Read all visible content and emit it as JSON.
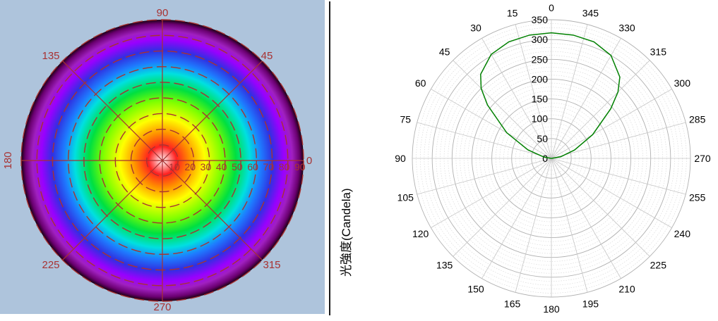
{
  "chart_data": [
    {
      "type": "heatmap",
      "subtype": "polar-color-map",
      "title": "",
      "angle_labels": [
        {
          "text": "90",
          "angle": 90
        },
        {
          "text": "45",
          "angle": 45
        },
        {
          "text": "135",
          "angle": 135
        },
        {
          "text": "180",
          "angle": 180
        },
        {
          "text": "0",
          "angle": 0
        },
        {
          "text": "225",
          "angle": 225
        },
        {
          "text": "315",
          "angle": 315
        },
        {
          "text": "270",
          "angle": 270
        }
      ],
      "radial_tick_labels": [
        "10",
        "20",
        "30",
        "40",
        "50",
        "60",
        "70",
        "80",
        "90"
      ],
      "radial_range": [
        0,
        90
      ],
      "radial_grid": [
        10,
        20,
        30,
        40,
        50,
        60,
        70,
        80,
        90
      ],
      "background_color": "#aec4dc",
      "grid_color": "#a83232",
      "colorscale": [
        "#ffffff",
        "#ff2020",
        "#ff8c00",
        "#ffff00",
        "#7fff00",
        "#00e040",
        "#00e0e0",
        "#1e7bff",
        "#3030e0",
        "#9a00ff",
        "#a020c0",
        "#6a0070",
        "#1a0010"
      ]
    },
    {
      "type": "line",
      "subtype": "polar",
      "title": "",
      "ylabel": "光強度(Candela)",
      "angle_direction": "clockwise-from-top",
      "angle_ticks": [
        0,
        15,
        30,
        45,
        60,
        75,
        90,
        105,
        120,
        135,
        150,
        165,
        180,
        195,
        210,
        225,
        240,
        255,
        270,
        285,
        300,
        315,
        330,
        345
      ],
      "angle_tick_labels": [
        "0",
        "345",
        "330",
        "315",
        "300",
        "285",
        "270",
        "255",
        "240",
        "225",
        "210",
        "195",
        "180",
        "165",
        "150",
        "135",
        "120",
        "105",
        "90",
        "75",
        "60",
        "45",
        "30",
        "15"
      ],
      "radial_ticks": [
        0,
        50,
        100,
        150,
        200,
        250,
        300,
        350
      ],
      "radial_tick_labels": [
        "0",
        "50",
        "100",
        "150",
        "200",
        "250",
        "300",
        "350"
      ],
      "radial_range": [
        0,
        350
      ],
      "grid": true,
      "series": [
        {
          "color": "#008000",
          "x": [
            270,
            280,
            290,
            300,
            310,
            315,
            320,
            330,
            340,
            350,
            0,
            10,
            20,
            30,
            40,
            45,
            50,
            60,
            70,
            80,
            90
          ],
          "y": [
            0,
            24,
            62,
            120,
            195,
            237,
            268,
            300,
            313,
            316,
            317,
            316,
            313,
            303,
            277,
            250,
            210,
            130,
            63,
            19,
            0
          ]
        }
      ]
    }
  ]
}
